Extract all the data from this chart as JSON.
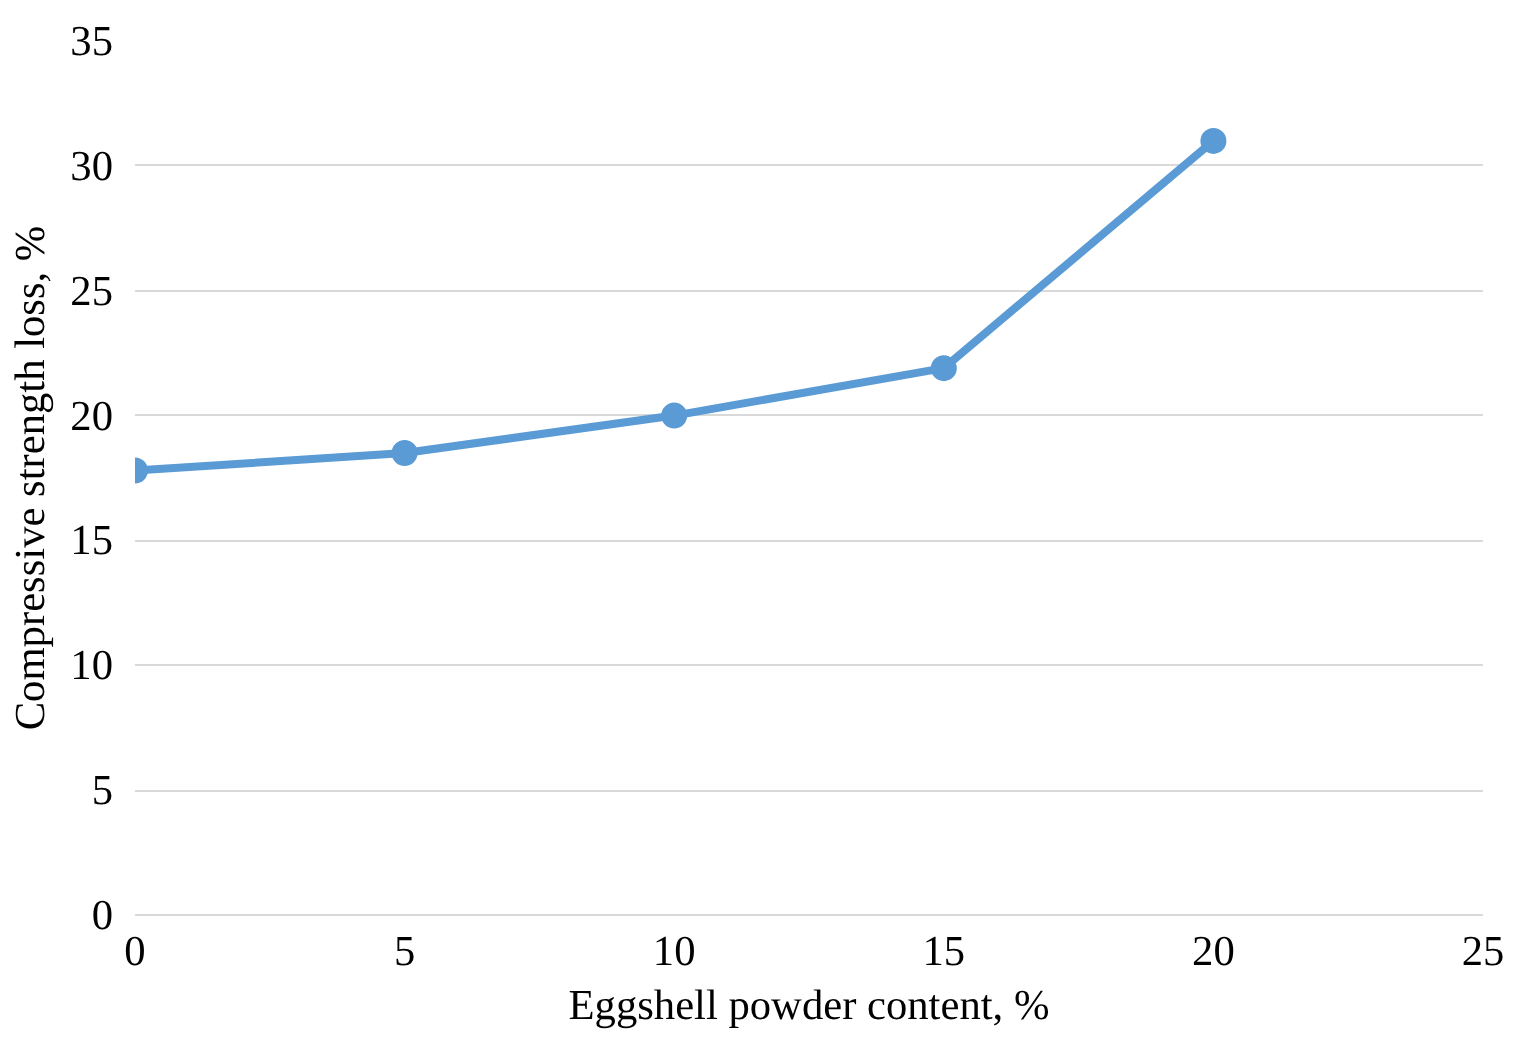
{
  "chart_data": {
    "type": "line",
    "xlabel": "Eggshell powder content, %",
    "ylabel": "Compressive strength loss, %",
    "x": [
      0,
      5,
      10,
      15,
      20
    ],
    "series": [
      {
        "color": "#5b9bd5",
        "values": [
          17.8,
          18.5,
          20.0,
          21.9,
          31.0
        ]
      }
    ],
    "xlim": [
      0,
      25
    ],
    "xticks": [
      0,
      5,
      10,
      15,
      20,
      25
    ],
    "ylim": [
      0,
      35
    ],
    "yticks": [
      0,
      5,
      10,
      15,
      20,
      25,
      30,
      35
    ],
    "grid": "y",
    "marker": "circle",
    "line_style": "solid"
  }
}
